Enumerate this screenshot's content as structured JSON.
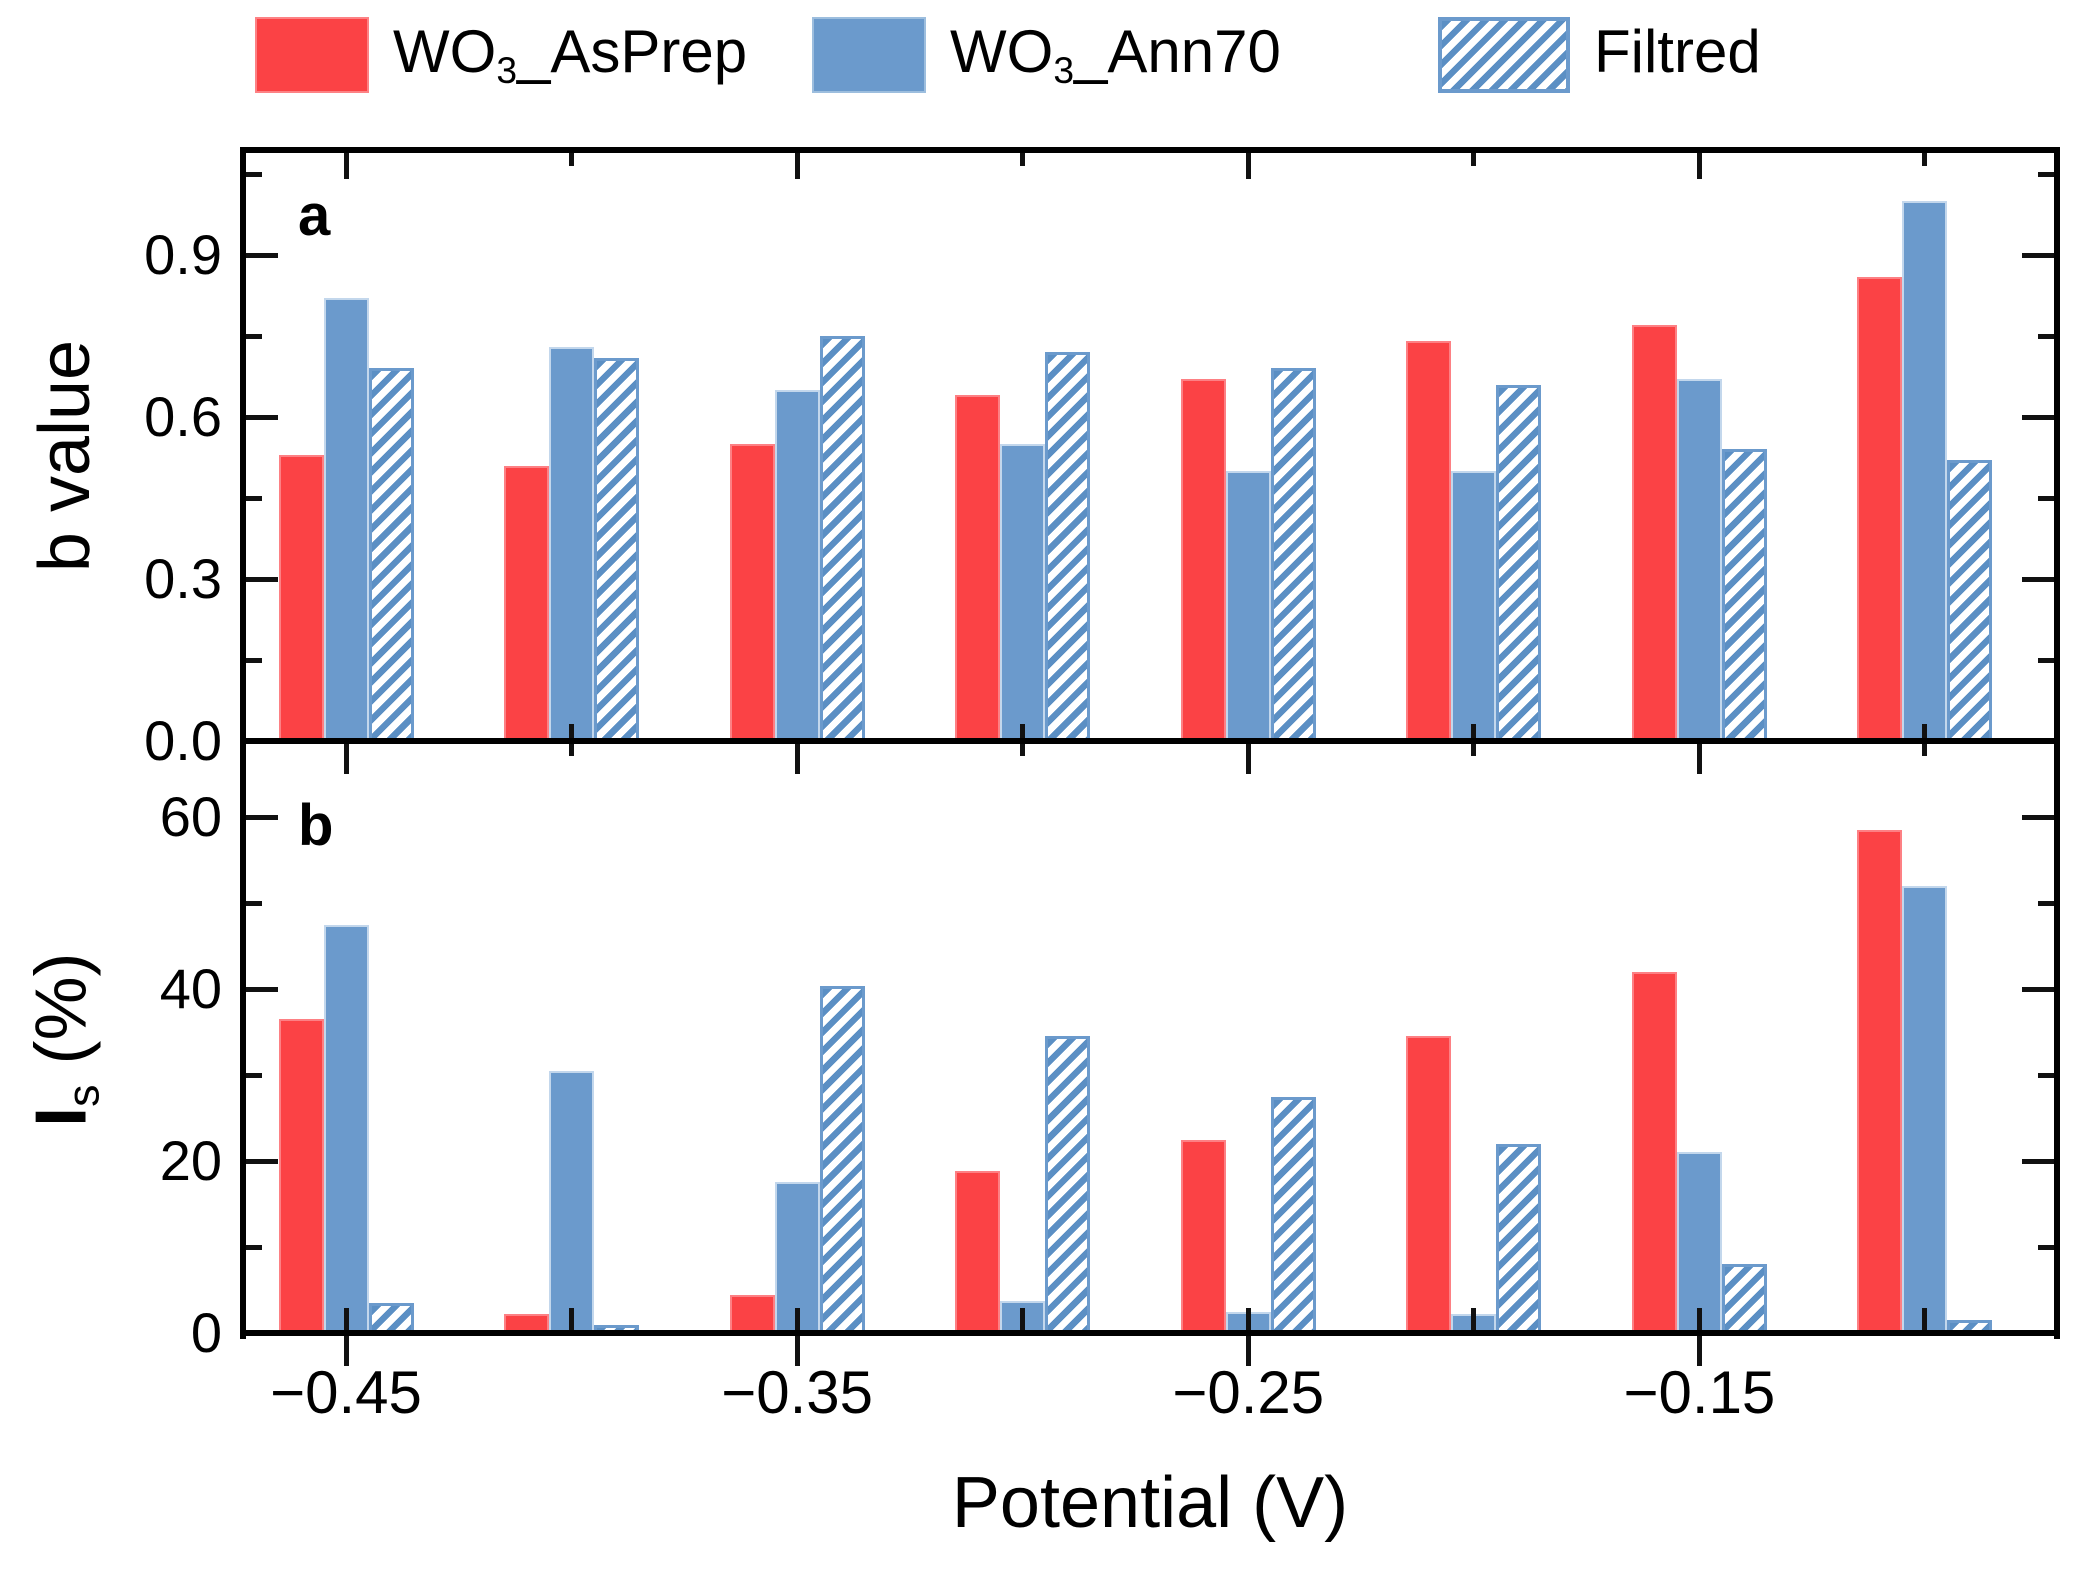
{
  "figure": {
    "legend": {
      "items": [
        {
          "name": "WO3_AsPrep",
          "pre": "WO",
          "sub": "3",
          "post": "_AsPrep",
          "swatch": "red-solid"
        },
        {
          "name": "WO3_Ann70",
          "pre": "WO",
          "sub": "3",
          "post": "_Ann70",
          "swatch": "blue-solid"
        },
        {
          "name": "Filtred",
          "pre": "Filtred",
          "sub": "",
          "post": "",
          "swatch": "blue-hatched"
        }
      ]
    },
    "panel_a_letter": "a",
    "panel_b_letter": "b",
    "xlabel": "Potential (V)",
    "ylabel_b_pre": "I",
    "ylabel_b_sub": "s",
    "ylabel_b_post": " (%)"
  },
  "colors": {
    "red": "#fb4245",
    "blue": "#6b9acc",
    "hatch_stripe": "#5b8fc4",
    "axis": "#000000"
  },
  "chart_data": {
    "type": "bar",
    "xlabel": "Potential (V)",
    "categories": [
      -0.45,
      -0.4,
      -0.35,
      -0.3,
      -0.25,
      -0.2,
      -0.15,
      -0.1
    ],
    "x_tick_labels": [
      "−0.45",
      "−0.35",
      "−0.25",
      "−0.15"
    ],
    "x_tick_positions": [
      -0.45,
      -0.35,
      -0.25,
      -0.15
    ],
    "legend_position": "top",
    "grid": false,
    "panels": [
      {
        "id": "a",
        "ylabel": "b value",
        "ylim": [
          0,
          1.095
        ],
        "yticks": [
          0.0,
          0.3,
          0.6,
          0.9
        ],
        "ytick_labels": [
          "0.0",
          "0.3",
          "0.6",
          "0.9"
        ],
        "yticks_minor": [
          0.15,
          0.45,
          0.75,
          1.05
        ],
        "series": [
          {
            "name": "WO3_AsPrep",
            "style": "red-solid",
            "values": [
              0.53,
              0.51,
              0.55,
              0.64,
              0.67,
              0.74,
              0.77,
              0.86
            ]
          },
          {
            "name": "WO3_Ann70",
            "style": "blue-solid",
            "values": [
              0.82,
              0.73,
              0.65,
              0.55,
              0.5,
              0.5,
              0.67,
              1.0
            ]
          },
          {
            "name": "Filtred",
            "style": "blue-hatched",
            "values": [
              0.69,
              0.71,
              0.75,
              0.72,
              0.69,
              0.66,
              0.54,
              0.52
            ]
          }
        ]
      },
      {
        "id": "b",
        "ylabel": "I_s (%)",
        "ylim": [
          0,
          68.8
        ],
        "yticks": [
          0,
          20,
          40,
          60
        ],
        "ytick_labels": [
          "0",
          "20",
          "40",
          "60"
        ],
        "yticks_minor": [
          10,
          30,
          50
        ],
        "series": [
          {
            "name": "WO3_AsPrep",
            "style": "red-solid",
            "values": [
              36.5,
              2.2,
              4.4,
              18.8,
              22.5,
              34.5,
              42.0,
              58.5
            ]
          },
          {
            "name": "WO3_Ann70",
            "style": "blue-solid",
            "values": [
              47.5,
              30.5,
              17.6,
              3.7,
              2.5,
              2.2,
              21.0,
              52.0
            ]
          },
          {
            "name": "Filtred",
            "style": "blue-hatched",
            "values": [
              3.5,
              0.9,
              40.3,
              34.5,
              27.5,
              22.0,
              8.0,
              1.5
            ]
          }
        ]
      }
    ]
  }
}
